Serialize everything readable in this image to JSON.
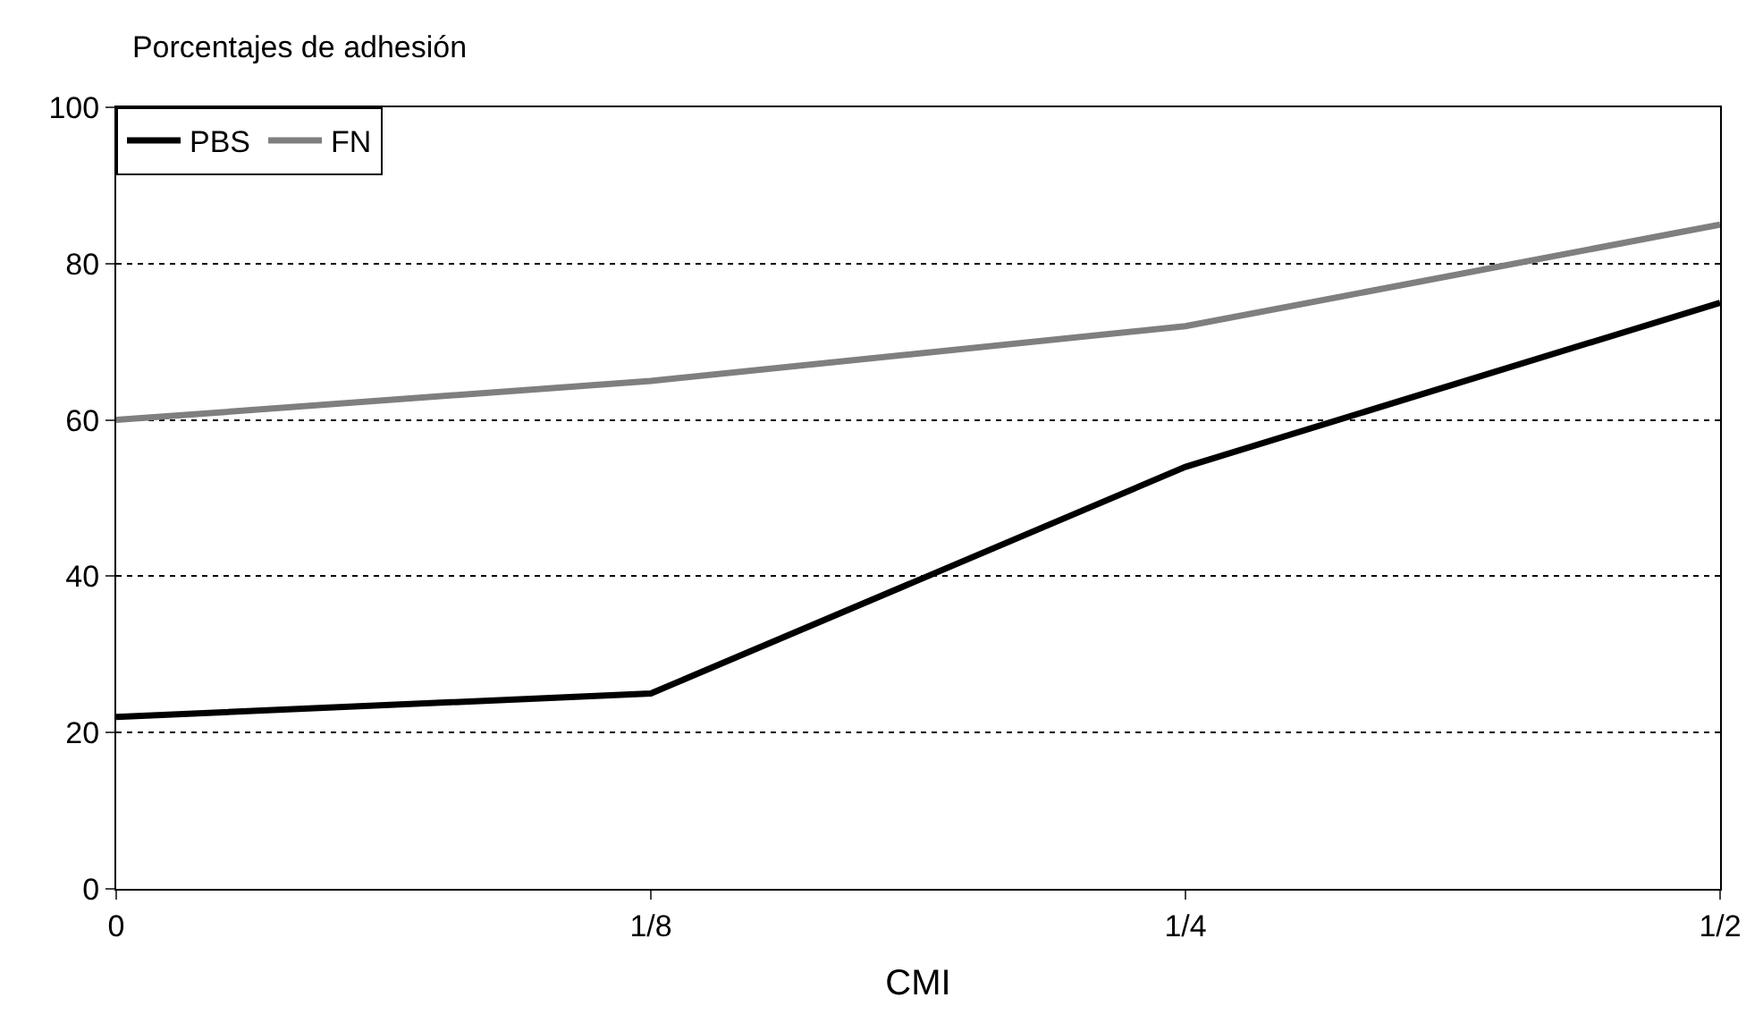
{
  "chart_data": {
    "type": "line",
    "title": "Porcentajes de adhesión",
    "xlabel": "CMI",
    "categories": [
      "0",
      "1/8",
      "1/4",
      "1/2"
    ],
    "series": [
      {
        "name": "PBS",
        "color": "#000000",
        "values": [
          22,
          25,
          54,
          75
        ]
      },
      {
        "name": "FN",
        "color": "#7f7f7f",
        "values": [
          60,
          65,
          72,
          85
        ]
      }
    ],
    "ylim": [
      0,
      100
    ],
    "yticks": [
      0,
      20,
      40,
      60,
      80,
      100
    ],
    "grid": "y",
    "legend": "top left",
    "marker": "none",
    "line_style": "solid"
  }
}
